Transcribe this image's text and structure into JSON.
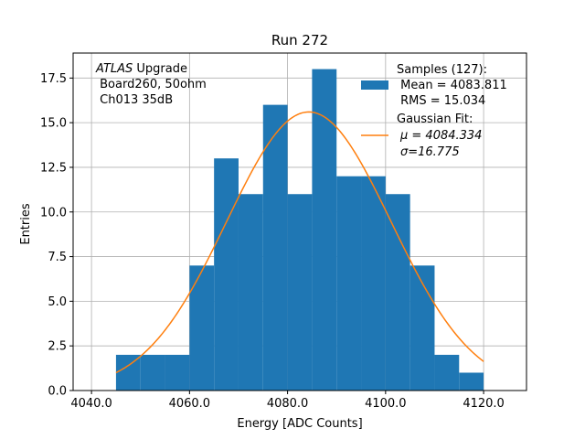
{
  "chart_data": {
    "type": "bar",
    "title": "Run 272",
    "xlabel": "Energy [ADC Counts]",
    "ylabel": "Entries",
    "xlim": [
      4036.25,
      4128.75
    ],
    "ylim": [
      0,
      18.9
    ],
    "grid": true,
    "legend_placement": "upper-right",
    "x_ticks": [
      {
        "value": 4040,
        "label": "4040.0"
      },
      {
        "value": 4060,
        "label": "4060.0"
      },
      {
        "value": 4080,
        "label": "4080.0"
      },
      {
        "value": 4100,
        "label": "4100.0"
      },
      {
        "value": 4120,
        "label": "4120.0"
      }
    ],
    "y_ticks": [
      {
        "value": 0,
        "label": "0.0"
      },
      {
        "value": 2.5,
        "label": "2.5"
      },
      {
        "value": 5,
        "label": "5.0"
      },
      {
        "value": 7.5,
        "label": "7.5"
      },
      {
        "value": 10,
        "label": "10.0"
      },
      {
        "value": 12.5,
        "label": "12.5"
      },
      {
        "value": 15,
        "label": "15.0"
      },
      {
        "value": 17.5,
        "label": "17.5"
      }
    ],
    "histogram": {
      "color": "#1f77b4",
      "bin_edges": [
        4045,
        4050,
        4055,
        4060,
        4065,
        4070,
        4075,
        4080,
        4085,
        4090,
        4095,
        4100,
        4105,
        4110,
        4115,
        4120
      ],
      "counts": [
        2,
        2,
        2,
        7,
        13,
        11,
        16,
        11,
        18,
        12,
        12,
        11,
        7,
        2,
        1
      ]
    },
    "gaussian_fit": {
      "color": "#ff7f0e",
      "mu": 4084.334,
      "sigma": 16.775,
      "amplitude": 15.6,
      "x_start": 4045,
      "x_end": 4120
    },
    "legend": {
      "samples_lines": [
        "Samples (127):",
        " Mean = 4083.811",
        " RMS = 15.034"
      ],
      "fit_lines": [
        "Gaussian Fit:",
        "μ = 4084.334",
        "σ=16.775"
      ]
    },
    "annotation": {
      "experiment": "ATLAS",
      "suffix": " Upgrade",
      "lines": [
        " Board260, 50ohm",
        " Ch013 35dB"
      ]
    }
  }
}
